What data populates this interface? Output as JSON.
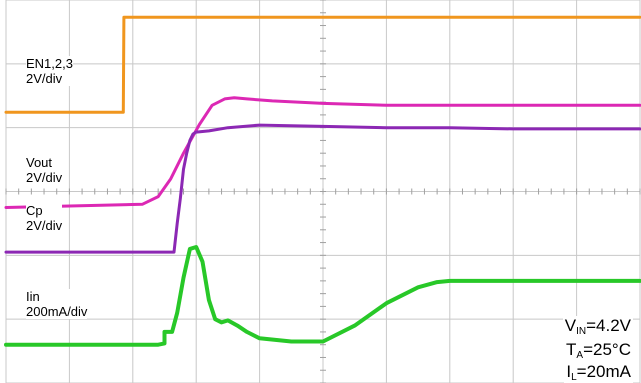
{
  "chart_data": {
    "type": "line",
    "title": "",
    "xlabel": "",
    "ylabel": "",
    "grid": true,
    "xlim": [
      0,
      10
    ],
    "ylim": [
      0,
      6
    ],
    "series": [
      {
        "name": "EN1,2,3 2V/div",
        "color": "#f0961e",
        "x": [
          0,
          1.85,
          1.86,
          10
        ],
        "y": [
          4.24,
          4.24,
          5.73,
          5.73
        ]
      },
      {
        "name": "Vout 2V/div",
        "color": "#dc28b4",
        "x": [
          0,
          2.15,
          2.4,
          2.6,
          2.8,
          3.05,
          3.25,
          3.45,
          3.6,
          3.8,
          4.2,
          5.0,
          6.0,
          7.0,
          8.0,
          9.0,
          10
        ],
        "y": [
          2.75,
          2.8,
          2.92,
          3.2,
          3.6,
          4.05,
          4.35,
          4.45,
          4.47,
          4.45,
          4.42,
          4.38,
          4.35,
          4.35,
          4.35,
          4.35,
          4.35
        ]
      },
      {
        "name": "Cp 2V/div",
        "color": "#8c28b4",
        "x": [
          0,
          2.65,
          2.7,
          2.75,
          2.8,
          2.85,
          2.9,
          2.95,
          3.0,
          3.2,
          3.5,
          4.0,
          5.0,
          6.0,
          7.0,
          8.0,
          9.0,
          10
        ],
        "y": [
          2.05,
          2.05,
          2.5,
          2.9,
          3.35,
          3.6,
          3.8,
          3.9,
          3.93,
          3.95,
          4.0,
          4.04,
          4.02,
          4.0,
          4.0,
          3.98,
          3.98,
          3.98
        ]
      },
      {
        "name": "Iin 200mA/div",
        "color": "#28c828",
        "x": [
          0,
          2.4,
          2.5,
          2.5,
          2.62,
          2.7,
          2.8,
          2.9,
          3.0,
          3.1,
          3.2,
          3.3,
          3.4,
          3.5,
          3.65,
          3.8,
          4.0,
          4.5,
          5.0,
          5.5,
          6.0,
          6.5,
          6.8,
          7.0,
          8.0,
          9.0,
          10
        ],
        "y": [
          0.6,
          0.6,
          0.62,
          0.8,
          0.8,
          1.1,
          1.65,
          2.1,
          2.13,
          1.9,
          1.3,
          1.0,
          0.95,
          0.98,
          0.9,
          0.8,
          0.7,
          0.65,
          0.65,
          0.9,
          1.25,
          1.5,
          1.58,
          1.6,
          1.6,
          1.6,
          1.6
        ]
      }
    ]
  },
  "labels": {
    "en": [
      "EN1,2,3",
      "2V/div"
    ],
    "vout": [
      "Vout",
      "2V/div"
    ],
    "cp": [
      "Cp",
      "2V/div"
    ],
    "iin": [
      "Iin",
      "200mA/div"
    ]
  },
  "conditions": {
    "vin_symbol": "V",
    "vin_sub": "IN",
    "vin_value": "=4.2V",
    "ta_symbol": "T",
    "ta_sub": "A",
    "ta_value": "=25°C",
    "il_symbol": "I",
    "il_sub": "L",
    "il_value": "=20mA"
  }
}
